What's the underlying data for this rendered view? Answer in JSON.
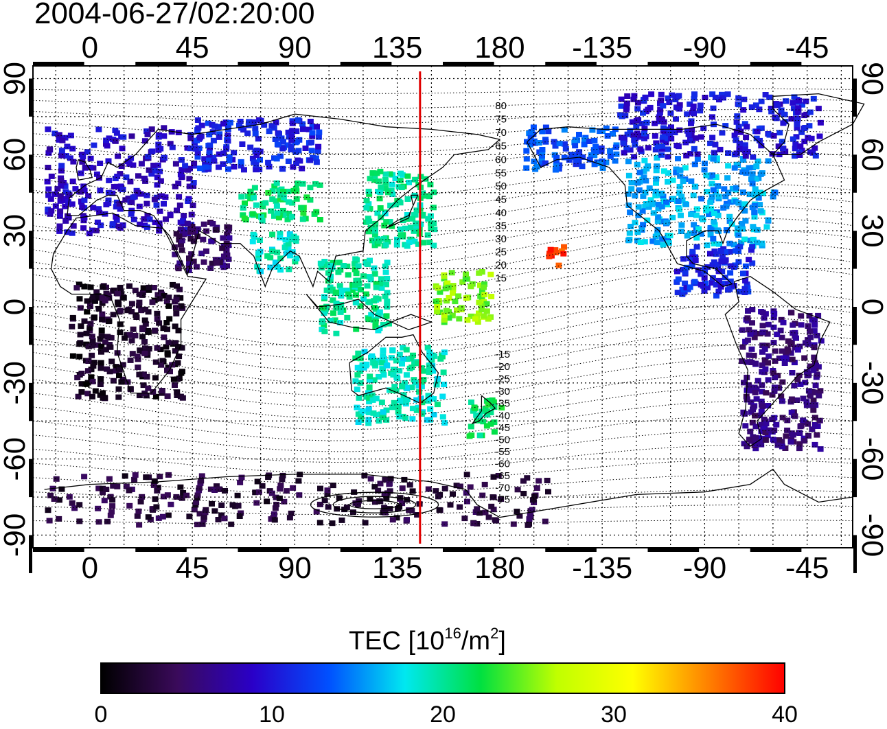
{
  "timestamp": "2004-06-27/02:20:00",
  "map": {
    "lon_ticks": [
      "0",
      "45",
      "90",
      "135",
      "180",
      "-135",
      "-90",
      "-45"
    ],
    "lat_ticks_left": [
      "90",
      "60",
      "30",
      "0",
      "-30",
      "-60",
      "-90"
    ],
    "lat_ticks_right": [
      "90",
      "60",
      "30",
      "0",
      "-30",
      "-60",
      "-90"
    ],
    "lon_range": [
      -25,
      335
    ],
    "lat_range": [
      -95,
      95
    ],
    "reference_meridian_lon": 145,
    "reference_meridian_color": "#e00000",
    "magnetic_contour_labels": [
      "80",
      "75",
      "70",
      "65",
      "60",
      "55",
      "50",
      "45",
      "40",
      "35",
      "30",
      "25",
      "20",
      "15",
      "-15",
      "-20",
      "-25",
      "-30",
      "-35",
      "-40",
      "-45",
      "-50",
      "-55",
      "-60",
      "-65",
      "-70",
      "-75"
    ]
  },
  "colorbar": {
    "title_main": "TEC  [10",
    "title_sup1": "16",
    "title_mid": "/m",
    "title_sup2": "2",
    "title_end": "]",
    "tick_labels": [
      "0",
      "10",
      "20",
      "30",
      "40"
    ],
    "min": 0,
    "max": 40,
    "colors": [
      "#000000",
      "#3a0a5a",
      "#2a00c8",
      "#0050ff",
      "#00e8f0",
      "#00e040",
      "#c0ff00",
      "#ffff00",
      "#ff8000",
      "#ff0000"
    ]
  },
  "tec_regions": [
    {
      "name": "europe",
      "lon": [
        -20,
        45
      ],
      "lat": [
        30,
        72
      ],
      "tec": 9
    },
    {
      "name": "russia-north",
      "lon": [
        45,
        100
      ],
      "lat": [
        55,
        75
      ],
      "tec": 11
    },
    {
      "name": "central-asia",
      "lon": [
        65,
        100
      ],
      "lat": [
        35,
        50
      ],
      "tec": 21
    },
    {
      "name": "east-asia",
      "lon": [
        120,
        150
      ],
      "lat": [
        25,
        55
      ],
      "tec": 20
    },
    {
      "name": "india",
      "lon": [
        70,
        90
      ],
      "lat": [
        15,
        30
      ],
      "tec": 19
    },
    {
      "name": "se-asia",
      "lon": [
        100,
        130
      ],
      "lat": [
        -10,
        20
      ],
      "tec": 20
    },
    {
      "name": "australia",
      "lon": [
        115,
        155
      ],
      "lat": [
        -45,
        -15
      ],
      "tec": 19
    },
    {
      "name": "new-zealand",
      "lon": [
        165,
        180
      ],
      "lat": [
        -50,
        -35
      ],
      "tec": 21
    },
    {
      "name": "pacific-west",
      "lon": [
        150,
        175
      ],
      "lat": [
        -5,
        15
      ],
      "tec": 25
    },
    {
      "name": "hawaii",
      "lon": [
        200,
        207
      ],
      "lat": [
        17,
        25
      ],
      "tec": 38
    },
    {
      "name": "alaska",
      "lon": [
        190,
        230
      ],
      "lat": [
        55,
        72
      ],
      "tec": 13
    },
    {
      "name": "north-america",
      "lon": [
        235,
        300
      ],
      "lat": [
        25,
        60
      ],
      "tec": 16
    },
    {
      "name": "canada-north",
      "lon": [
        230,
        320
      ],
      "lat": [
        60,
        85
      ],
      "tec": 10
    },
    {
      "name": "central-america",
      "lon": [
        255,
        290
      ],
      "lat": [
        5,
        25
      ],
      "tec": 11
    },
    {
      "name": "south-america",
      "lon": [
        285,
        320
      ],
      "lat": [
        -55,
        0
      ],
      "tec": 6
    },
    {
      "name": "africa",
      "lon": [
        -10,
        40
      ],
      "lat": [
        -35,
        10
      ],
      "tec": 2
    },
    {
      "name": "middle-east",
      "lon": [
        35,
        60
      ],
      "lat": [
        15,
        35
      ],
      "tec": 5
    },
    {
      "name": "antarctica",
      "lon": [
        -20,
        200
      ],
      "lat": [
        -85,
        -65
      ],
      "tec": 3
    }
  ]
}
